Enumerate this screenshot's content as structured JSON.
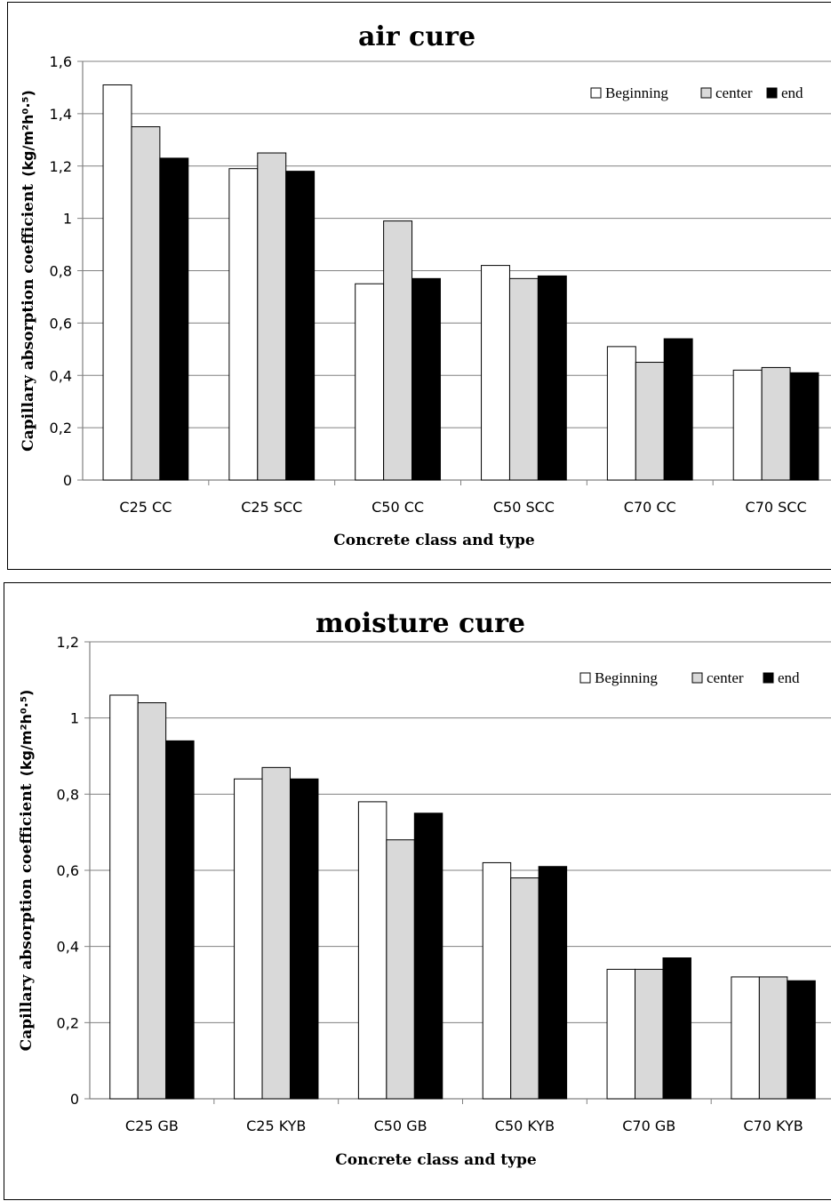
{
  "chart_data": [
    {
      "type": "bar",
      "title": "air cure",
      "xlabel": "Concrete class and type",
      "ylabel": "Capillary absorption coefficient",
      "ylabel_unit": "(kg/m²h⁰·⁵)",
      "ylim": [
        0,
        1.6
      ],
      "yticks": [
        "0",
        "0,2",
        "0,4",
        "0,6",
        "0,8",
        "1",
        "1,2",
        "1,4",
        "1,6"
      ],
      "grid": true,
      "legend_position": "top-right",
      "categories": [
        "C25  CC",
        "C25  SCC",
        "C50  CC",
        "C50  SCC",
        "C70  CC",
        "C70  SCC"
      ],
      "series": [
        {
          "name": "Beginning",
          "color": "#ffffff",
          "values": [
            1.51,
            1.19,
            0.75,
            0.82,
            0.51,
            0.42
          ]
        },
        {
          "name": "center",
          "color": "#d9d9d9",
          "values": [
            1.35,
            1.25,
            0.99,
            0.77,
            0.45,
            0.43
          ]
        },
        {
          "name": "end",
          "color": "#000000",
          "values": [
            1.23,
            1.18,
            0.77,
            0.78,
            0.54,
            0.41
          ]
        }
      ]
    },
    {
      "type": "bar",
      "title": "moisture cure",
      "xlabel": "Concrete class and type",
      "ylabel": "Capillary absorption coefficient",
      "ylabel_unit": "(kg/m²h⁰·⁵)",
      "ylim": [
        0,
        1.2
      ],
      "yticks": [
        "0",
        "0,2",
        "0,4",
        "0,6",
        "0,8",
        "1",
        "1,2"
      ],
      "grid": true,
      "legend_position": "top-right",
      "categories": [
        "C25 GB",
        "C25 KYB",
        "C50 GB",
        "C50 KYB",
        "C70 GB",
        "C70 KYB"
      ],
      "series": [
        {
          "name": "Beginning",
          "color": "#ffffff",
          "values": [
            1.06,
            0.84,
            0.78,
            0.62,
            0.34,
            0.32
          ]
        },
        {
          "name": "center",
          "color": "#d9d9d9",
          "values": [
            1.04,
            0.87,
            0.68,
            0.58,
            0.34,
            0.32
          ]
        },
        {
          "name": "end",
          "color": "#000000",
          "values": [
            0.94,
            0.84,
            0.75,
            0.61,
            0.37,
            0.31
          ]
        }
      ]
    }
  ]
}
